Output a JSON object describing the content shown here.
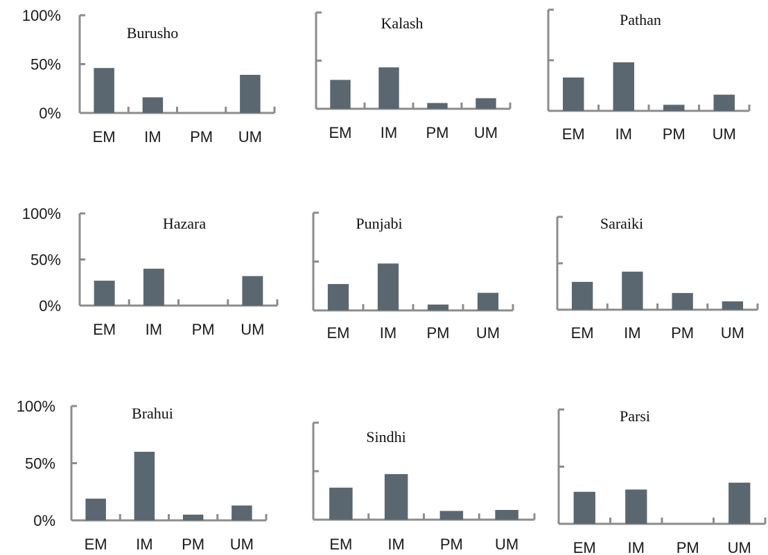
{
  "colors": {
    "bar": "#5b6770",
    "axis": "#8c8c8c",
    "text": "#1a1a1a"
  },
  "chart_data": [
    {
      "type": "bar",
      "title": "Burusho",
      "categories": [
        "EM",
        "IM",
        "PM",
        "UM"
      ],
      "values": [
        46,
        16,
        0,
        39
      ],
      "ylim": [
        0,
        100
      ],
      "yticks": [
        "100%",
        "50%",
        "0%"
      ],
      "show_ytick_labels": true
    },
    {
      "type": "bar",
      "title": "Kalash",
      "categories": [
        "EM",
        "IM",
        "PM",
        "UM"
      ],
      "values": [
        30,
        43,
        6,
        11
      ],
      "ylim": [
        0,
        100
      ],
      "yticks": [
        "",
        "",
        ""
      ],
      "show_ytick_labels": false
    },
    {
      "type": "bar",
      "title": "Pathan",
      "categories": [
        "EM",
        "IM",
        "PM",
        "UM"
      ],
      "values": [
        33,
        48,
        6,
        16
      ],
      "ylim": [
        0,
        100
      ],
      "yticks": [
        "",
        "",
        ""
      ],
      "show_ytick_labels": false
    },
    {
      "type": "bar",
      "title": "Hazara",
      "categories": [
        "EM",
        "IM",
        "PM",
        "UM"
      ],
      "values": [
        27,
        40,
        0,
        32
      ],
      "ylim": [
        0,
        100
      ],
      "yticks": [
        "100%",
        "50%",
        "0%"
      ],
      "show_ytick_labels": true
    },
    {
      "type": "bar",
      "title": "Punjabi",
      "categories": [
        "EM",
        "IM",
        "PM",
        "UM"
      ],
      "values": [
        27,
        48,
        6,
        18
      ],
      "ylim": [
        0,
        100
      ],
      "yticks": [
        "",
        "",
        ""
      ],
      "show_ytick_labels": false
    },
    {
      "type": "bar",
      "title": "Saraiki",
      "categories": [
        "EM",
        "IM",
        "PM",
        "UM"
      ],
      "values": [
        30,
        41,
        18,
        9
      ],
      "ylim": [
        0,
        100
      ],
      "yticks": [
        "",
        "",
        ""
      ],
      "show_ytick_labels": false
    },
    {
      "type": "bar",
      "title": "Brahui",
      "categories": [
        "EM",
        "IM",
        "PM",
        "UM"
      ],
      "values": [
        19,
        60,
        5,
        13
      ],
      "ylim": [
        0,
        100
      ],
      "yticks": [
        "100%",
        "50%",
        "0%"
      ],
      "show_ytick_labels": true
    },
    {
      "type": "bar",
      "title": "Sindhi",
      "categories": [
        "EM",
        "IM",
        "PM",
        "UM"
      ],
      "values": [
        33,
        47,
        9,
        10
      ],
      "ylim": [
        0,
        100
      ],
      "yticks": [
        "",
        "",
        ""
      ],
      "show_ytick_labels": false
    },
    {
      "type": "bar",
      "title": "Parsi",
      "categories": [
        "EM",
        "IM",
        "PM",
        "UM"
      ],
      "values": [
        28,
        30,
        0,
        36
      ],
      "ylim": [
        0,
        100
      ],
      "yticks": [
        "",
        "",
        ""
      ],
      "show_ytick_labels": false
    }
  ]
}
